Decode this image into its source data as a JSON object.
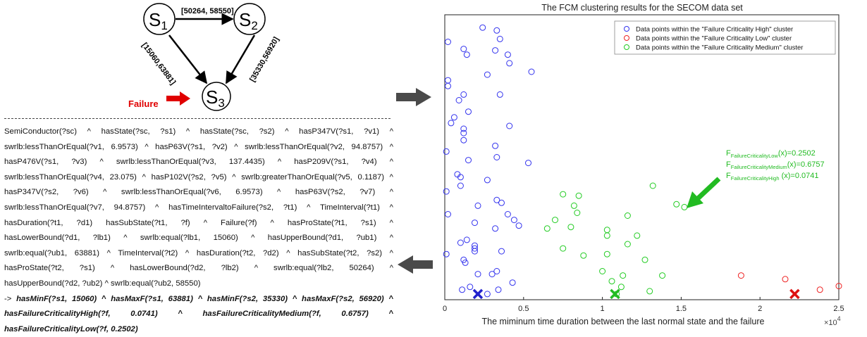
{
  "diagram": {
    "states": [
      {
        "id": "s1",
        "letter": "S",
        "sub": "1"
      },
      {
        "id": "s2",
        "letter": "S",
        "sub": "2"
      },
      {
        "id": "s3",
        "letter": "S",
        "sub": "3"
      }
    ],
    "edge_s1_s2": "[50264,  58550]",
    "edge_s1_s3": "[15060,63881]",
    "edge_s2_s3": "[35330,56920]",
    "failure_label": "Failure",
    "colors": {
      "failure": "#e00000",
      "edge": "#000000"
    }
  },
  "rule": {
    "lines": [
      "SemiConductor(?sc)  ^  hasState(?sc,  ?s1)  ^  hasState(?sc,  ?s2)  ^  hasP347V(?s1,  ?v1)  ^",
      "swrlb:lessThanOrEqual(?v1, 6.9573) ^ hasP63V(?s1, ?v2) ^ swrlb:lessThanOrEqual(?v2, 94.8757) ^",
      "hasP476V(?s1,  ?v3)  ^  swrlb:lessThanOrEqual(?v3,  137.4435)  ^  hasP209V(?s1,  ?v4)  ^",
      "swrlb:lessThanOrEqual(?v4, 23.075) ^ hasP102V(?s2, ?v5) ^ swrlb:greaterThanOrEqual(?v5, 0.1187) ^",
      "hasP347V(?s2,  ?v6)  ^  swrlb:lessThanOrEqual(?v6,  6.9573)  ^  hasP63V(?s2,  ?v7)  ^",
      "swrlb:lessThanOrEqual(?v7, 94.8757) ^ hasTimeIntervaltoFailure(?s2, ?t1) ^ TimeInterval(?t1) ^",
      "hasDuration(?t1,  ?d1)  hasSubState(?t1,  ?f)  ^  Failure(?f)  ^  hasProState(?t1,  ?s1)  ^",
      "hasLowerBound(?d1,  ?lb1)  ^  swrlb:equal(?lb1,  15060)  ^  hasUpperBound(?d1,  ?ub1)  ^",
      "swrlb:equal(?ub1, 63881) ^ TimeInterval(?t2) ^ hasDuration(?t2, ?d2) ^ hasSubState(?t2, ?s2) ^",
      "hasProState(?t2,  ?s1)  ^  hasLowerBound(?d2,  ?lb2)  ^  swrlb:equal(?lb2,  50264)  ^",
      "hasUpperBound(?d2, ?ub2) ^ swrlb:equal(?ub2, 58550)"
    ],
    "result_prefix": "-> ",
    "result_lines": [
      "hasMinF(?s1, 15060) ^ hasMaxF(?s1, 63881) ^ hasMinF(?s2, 35330) ^ hasMaxF(?s2, 56920) ^",
      "hasFailureCriticalityHigh(?f, 0.0741) ^ hasFailureCriticalityMedium(?f, 0.6757) ^",
      "hasFailureCriticalityLow(?f, 0.2502)"
    ]
  },
  "arrows": {
    "color": "#4a4a4a"
  },
  "chart_data": {
    "type": "scatter",
    "title": "The FCM clustering results for the SECOM data set",
    "xlabel": "The miminum time duration between the last normal state and the failure",
    "x_multiplier": "×10",
    "x_multiplier_exp": "4",
    "xlim": [
      0,
      2.5
    ],
    "ylim": [
      0,
      1
    ],
    "xticks": [
      0,
      0.5,
      1,
      1.5,
      2,
      2.5
    ],
    "xtick_labels": [
      "0",
      "0.5",
      "1",
      "1.5",
      "2",
      "2.5"
    ],
    "grid": false,
    "legend_position": "top-right",
    "series": [
      {
        "name": "Data points within the \"Failure Criticality High\" cluster",
        "color": "#3333ee",
        "points": [
          [
            0.24,
            0.955
          ],
          [
            0.33,
            0.945
          ],
          [
            0.35,
            0.915
          ],
          [
            0.02,
            0.905
          ],
          [
            0.12,
            0.88
          ],
          [
            0.14,
            0.86
          ],
          [
            0.32,
            0.875
          ],
          [
            0.4,
            0.86
          ],
          [
            0.41,
            0.83
          ],
          [
            0.55,
            0.8
          ],
          [
            0.27,
            0.79
          ],
          [
            0.02,
            0.77
          ],
          [
            0.02,
            0.75
          ],
          [
            0.12,
            0.72
          ],
          [
            0.09,
            0.7
          ],
          [
            0.35,
            0.72
          ],
          [
            0.15,
            0.66
          ],
          [
            0.06,
            0.64
          ],
          [
            0.04,
            0.62
          ],
          [
            0.41,
            0.61
          ],
          [
            0.12,
            0.6
          ],
          [
            0.12,
            0.585
          ],
          [
            0.12,
            0.56
          ],
          [
            0.32,
            0.54
          ],
          [
            0.01,
            0.52
          ],
          [
            0.15,
            0.49
          ],
          [
            0.33,
            0.5
          ],
          [
            0.53,
            0.48
          ],
          [
            0.08,
            0.44
          ],
          [
            0.1,
            0.43
          ],
          [
            0.27,
            0.42
          ],
          [
            0.1,
            0.4
          ],
          [
            0.01,
            0.38
          ],
          [
            0.33,
            0.35
          ],
          [
            0.36,
            0.34
          ],
          [
            0.21,
            0.33
          ],
          [
            0.4,
            0.3
          ],
          [
            0.02,
            0.3
          ],
          [
            0.44,
            0.28
          ],
          [
            0.19,
            0.27
          ],
          [
            0.47,
            0.26
          ],
          [
            0.32,
            0.25
          ],
          [
            0.14,
            0.21
          ],
          [
            0.1,
            0.2
          ],
          [
            0.19,
            0.19
          ],
          [
            0.19,
            0.18
          ],
          [
            0.19,
            0.17
          ],
          [
            0.36,
            0.17
          ],
          [
            0.01,
            0.16
          ],
          [
            0.12,
            0.14
          ],
          [
            0.13,
            0.13
          ],
          [
            0.33,
            0.1
          ],
          [
            0.3,
            0.09
          ],
          [
            0.21,
            0.09
          ],
          [
            0.43,
            0.06
          ],
          [
            0.16,
            0.045
          ],
          [
            0.11,
            0.035
          ],
          [
            0.34,
            0.035
          ],
          [
            0.27,
            0.02
          ]
        ]
      },
      {
        "name": "Data points within the \"Failure Criticality Low\" cluster",
        "color": "#ee2222",
        "points": [
          [
            1.88,
            0.085
          ],
          [
            2.16,
            0.072
          ],
          [
            2.5,
            0.048
          ],
          [
            2.38,
            0.035
          ]
        ]
      },
      {
        "name": "Data points within the \"Failure Criticality Medium\" cluster",
        "color": "#22cc22",
        "points": [
          [
            1.32,
            0.4
          ],
          [
            0.75,
            0.37
          ],
          [
            0.85,
            0.365
          ],
          [
            1.47,
            0.335
          ],
          [
            1.52,
            0.325
          ],
          [
            0.82,
            0.33
          ],
          [
            0.84,
            0.305
          ],
          [
            1.16,
            0.295
          ],
          [
            0.7,
            0.28
          ],
          [
            0.8,
            0.255
          ],
          [
            0.65,
            0.25
          ],
          [
            1.03,
            0.245
          ],
          [
            1.03,
            0.225
          ],
          [
            1.22,
            0.225
          ],
          [
            1.16,
            0.195
          ],
          [
            0.75,
            0.18
          ],
          [
            1.03,
            0.16
          ],
          [
            0.88,
            0.155
          ],
          [
            1.27,
            0.14
          ],
          [
            1.0,
            0.1
          ],
          [
            1.13,
            0.085
          ],
          [
            1.38,
            0.085
          ],
          [
            1.06,
            0.065
          ],
          [
            1.12,
            0.045
          ],
          [
            1.3,
            0.03
          ],
          [
            1.09,
            0.02
          ]
        ]
      }
    ],
    "centroids": [
      {
        "label": "Failure Criticality High",
        "x": 0.21,
        "y": 0.02,
        "color": "#2222cc"
      },
      {
        "label": "Failure Criticality Medium",
        "x": 1.08,
        "y": 0.02,
        "color": "#22bb22"
      },
      {
        "label": "Failure Criticality Low",
        "x": 2.22,
        "y": 0.02,
        "color": "#dd1111"
      }
    ],
    "annotation": {
      "color": "#22bb22",
      "lines": [
        {
          "main": "F",
          "sub": "FailureCriticalityLow",
          "val": "(x)=0.2502"
        },
        {
          "main": "F",
          "sub": "FailureCriticalityMedium",
          "val": "(x)=0.6757"
        },
        {
          "main": "F",
          "sub": "FailureCriticalityHigh",
          "val": " (x)=0.0741"
        }
      ]
    }
  }
}
